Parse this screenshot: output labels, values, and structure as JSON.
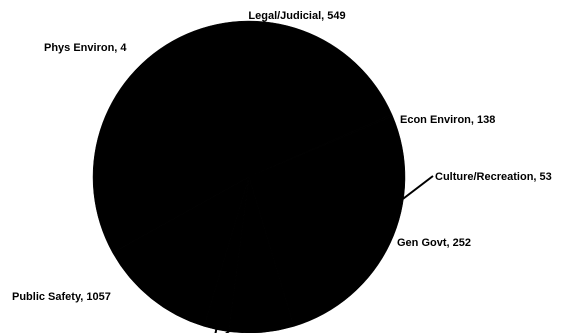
{
  "chart_data": {
    "type": "pie",
    "title": "",
    "slices": [
      {
        "label": "Legal/Judicial",
        "value": 549
      },
      {
        "label": "Econ Environ",
        "value": 138
      },
      {
        "label": "Culture/Recreation",
        "value": 53
      },
      {
        "label": "Gen Govt",
        "value": 252
      },
      {
        "label": "Public Safety",
        "value": 1057
      },
      {
        "label": "Phys Environ",
        "value": 4
      }
    ],
    "label_format": "{label}, {value}",
    "legend": "none",
    "colors": {
      "slice_fill": "#000000",
      "leader_line": "#000000",
      "background": "#ffffff"
    }
  }
}
